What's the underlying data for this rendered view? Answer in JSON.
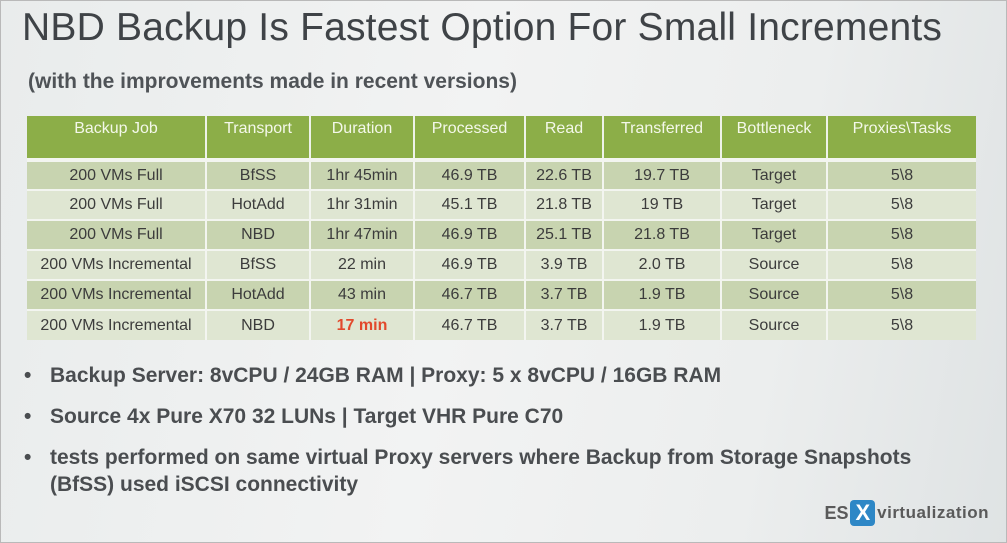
{
  "slide": {
    "title": "NBD Backup Is Fastest Option For Small Increments",
    "subtitle": "(with the improvements made in recent versions)"
  },
  "table": {
    "columns": [
      "Backup Job",
      "Transport",
      "Duration",
      "Processed",
      "Read",
      "Transferred",
      "Bottleneck",
      "Proxies\\Tasks"
    ],
    "rows": [
      [
        "200 VMs Full",
        "BfSS",
        "1hr 45min",
        "46.9 TB",
        "22.6 TB",
        "19.7 TB",
        "Target",
        "5\\8"
      ],
      [
        "200 VMs Full",
        "HotAdd",
        "1hr 31min",
        "45.1 TB",
        "21.8 TB",
        "19 TB",
        "Target",
        "5\\8"
      ],
      [
        "200 VMs Full",
        "NBD",
        "1hr 47min",
        "46.9 TB",
        "25.1 TB",
        "21.8 TB",
        "Target",
        "5\\8"
      ],
      [
        "200 VMs Incremental",
        "BfSS",
        "22 min",
        "46.9 TB",
        "3.9 TB",
        "2.0 TB",
        "Source",
        "5\\8"
      ],
      [
        "200 VMs Incremental",
        "HotAdd",
        "43 min",
        "46.7 TB",
        "3.7 TB",
        "1.9 TB",
        "Source",
        "5\\8"
      ],
      [
        "200 VMs Incremental",
        "NBD",
        "17 min",
        "46.7 TB",
        "3.7 TB",
        "1.9 TB",
        "Source",
        "5\\8"
      ]
    ],
    "highlight": {
      "row": 5,
      "col": 2,
      "color": "#e2492c"
    }
  },
  "notes": [
    "Backup Server:  8vCPU / 24GB RAM  | Proxy: 5 x 8vCPU / 16GB RAM",
    "Source 4x Pure X70 32 LUNs | Target VHR Pure C70",
    "tests performed on same virtual Proxy servers where Backup from Storage Snapshots (BfSS) used iSCSI connectivity"
  ],
  "watermark": {
    "es": "ES",
    "x": "X",
    "rest": "virtualization"
  },
  "colors": {
    "header_green": "#8cae48",
    "row_dark": "#c8d4b0",
    "row_light": "#dfe6d2",
    "highlight_red": "#e2492c",
    "brand_blue": "#2e87c6"
  }
}
